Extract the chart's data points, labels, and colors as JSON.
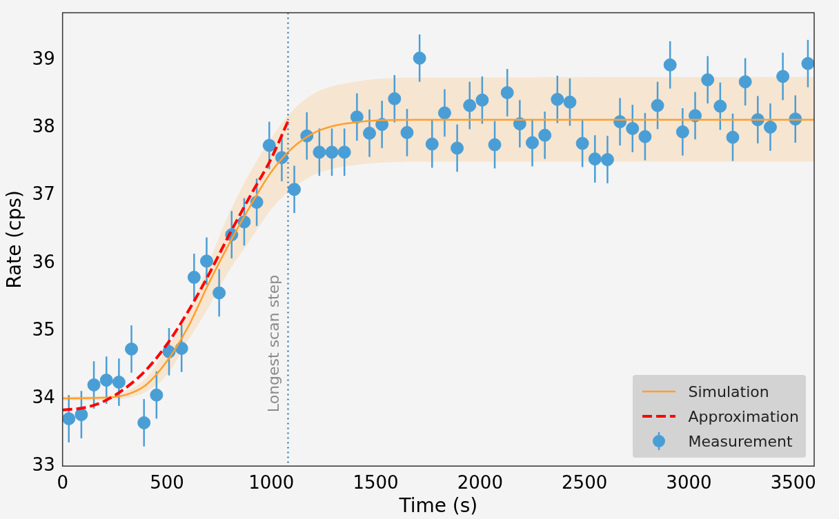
{
  "chart_data": {
    "type": "line",
    "xlabel": "Time (s)",
    "ylabel": "Rate (cps)",
    "xlim": [
      0,
      3600
    ],
    "xticks": [
      0,
      500,
      1000,
      1500,
      2000,
      2500,
      3000,
      3500
    ],
    "ylim": [
      33,
      39.7
    ],
    "yticks": [
      33,
      34,
      35,
      36,
      37,
      38,
      39
    ],
    "grid": false,
    "legend": "bottom right",
    "series": [
      {
        "name": "Simulation",
        "color": "#ff9f2e",
        "x": [
          0,
          200,
          300,
          400,
          500,
          600,
          700,
          800,
          900,
          1000,
          1100,
          1200,
          1300,
          1400,
          1500,
          1700,
          3600
        ],
        "values": [
          34.0,
          34.01,
          34.05,
          34.2,
          34.55,
          35.05,
          35.7,
          36.3,
          36.85,
          37.35,
          37.7,
          37.92,
          38.03,
          38.08,
          38.11,
          38.12,
          38.12
        ],
        "lower": [
          33.97,
          33.98,
          34.0,
          34.1,
          34.35,
          34.85,
          35.35,
          35.9,
          36.35,
          36.8,
          37.1,
          37.3,
          37.4,
          37.45,
          37.48,
          37.5,
          37.5
        ],
        "upper": [
          34.03,
          34.04,
          34.1,
          34.3,
          34.75,
          35.25,
          36.0,
          36.75,
          37.35,
          37.85,
          38.25,
          38.5,
          38.62,
          38.68,
          38.72,
          38.74,
          38.75
        ]
      },
      {
        "name": "Approximation",
        "type": "line",
        "line_style": "dashed",
        "color": "#ff0000",
        "x": [
          0,
          100,
          200,
          300,
          400,
          500,
          600,
          700,
          800,
          900,
          1000,
          1080
        ],
        "values": [
          33.83,
          33.86,
          33.96,
          34.15,
          34.42,
          34.8,
          35.28,
          35.83,
          36.43,
          37.0,
          37.55,
          38.1
        ]
      },
      {
        "name": "Measurement",
        "type": "scatter",
        "marker": "circle",
        "color": "#4a9ed6",
        "x": [
          30,
          90,
          150,
          210,
          270,
          330,
          390,
          450,
          510,
          570,
          630,
          690,
          750,
          810,
          870,
          930,
          990,
          1050,
          1110,
          1170,
          1230,
          1290,
          1350,
          1410,
          1470,
          1530,
          1590,
          1650,
          1710,
          1770,
          1830,
          1890,
          1950,
          2010,
          2070,
          2130,
          2190,
          2250,
          2310,
          2370,
          2430,
          2490,
          2550,
          2610,
          2670,
          2730,
          2790,
          2850,
          2910,
          2970,
          3030,
          3090,
          3150,
          3210,
          3270,
          3330,
          3390,
          3450,
          3510,
          3570
        ],
        "values": [
          33.7,
          33.76,
          34.2,
          34.27,
          34.24,
          34.73,
          33.64,
          34.05,
          34.69,
          34.74,
          35.79,
          36.03,
          35.56,
          36.42,
          36.61,
          36.9,
          37.74,
          37.56,
          37.09,
          37.88,
          37.64,
          37.64,
          37.64,
          38.16,
          37.92,
          38.05,
          38.43,
          37.93,
          39.03,
          37.76,
          38.22,
          37.7,
          38.33,
          38.41,
          37.75,
          38.52,
          38.06,
          37.78,
          37.89,
          38.42,
          38.38,
          37.77,
          37.54,
          37.53,
          38.09,
          37.99,
          37.87,
          38.33,
          38.93,
          37.94,
          38.18,
          38.71,
          38.32,
          37.86,
          38.68,
          38.12,
          38.01,
          38.76,
          38.13,
          38.95
        ],
        "errors": [
          0.35,
          0.35,
          0.35,
          0.35,
          0.35,
          0.35,
          0.35,
          0.35,
          0.35,
          0.35,
          0.35,
          0.35,
          0.35,
          0.35,
          0.35,
          0.35,
          0.35,
          0.35,
          0.35,
          0.35,
          0.35,
          0.35,
          0.35,
          0.35,
          0.35,
          0.35,
          0.35,
          0.35,
          0.35,
          0.35,
          0.35,
          0.35,
          0.35,
          0.35,
          0.35,
          0.35,
          0.35,
          0.35,
          0.35,
          0.35,
          0.35,
          0.35,
          0.35,
          0.35,
          0.35,
          0.35,
          0.35,
          0.35,
          0.35,
          0.35,
          0.35,
          0.35,
          0.35,
          0.35,
          0.35,
          0.35,
          0.35,
          0.35,
          0.35,
          0.35
        ]
      }
    ],
    "ref_lines": [
      {
        "axis": "x",
        "value": 1080,
        "label": "Longest scan step",
        "color": "#3a7fb5",
        "line_style": "dotted"
      }
    ]
  }
}
